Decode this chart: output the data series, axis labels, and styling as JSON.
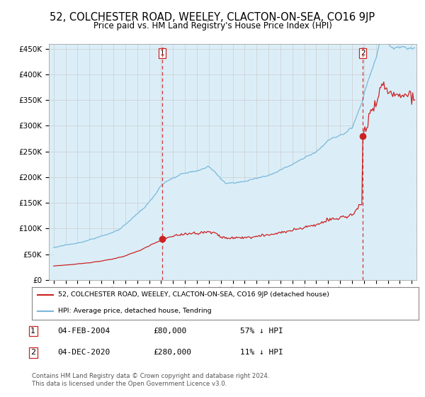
{
  "title": "52, COLCHESTER ROAD, WEELEY, CLACTON-ON-SEA, CO16 9JP",
  "subtitle": "Price paid vs. HM Land Registry's House Price Index (HPI)",
  "ylim": [
    0,
    460000
  ],
  "yticks": [
    0,
    50000,
    100000,
    150000,
    200000,
    250000,
    300000,
    350000,
    400000,
    450000
  ],
  "ytick_labels": [
    "£0",
    "£50K",
    "£100K",
    "£150K",
    "£200K",
    "£250K",
    "£300K",
    "£350K",
    "£400K",
    "£450K"
  ],
  "hpi_color": "#7ab8d9",
  "hpi_fill_color": "#dbeef8",
  "price_color": "#cc2222",
  "sale1_year": 2004.09,
  "sale1_price": 80000,
  "sale2_year": 2020.92,
  "sale2_price": 280000,
  "legend_label_red": "52, COLCHESTER ROAD, WEELEY, CLACTON-ON-SEA, CO16 9JP (detached house)",
  "legend_label_blue": "HPI: Average price, detached house, Tendring",
  "annotation1_date": "04-FEB-2004",
  "annotation1_price": "£80,000",
  "annotation1_hpi": "57% ↓ HPI",
  "annotation2_date": "04-DEC-2020",
  "annotation2_price": "£280,000",
  "annotation2_hpi": "11% ↓ HPI",
  "footer": "Contains HM Land Registry data © Crown copyright and database right 2024.\nThis data is licensed under the Open Government Licence v3.0.",
  "background_color": "#ffffff",
  "grid_color": "#cccccc",
  "title_fontsize": 10.5,
  "subtitle_fontsize": 8.5
}
